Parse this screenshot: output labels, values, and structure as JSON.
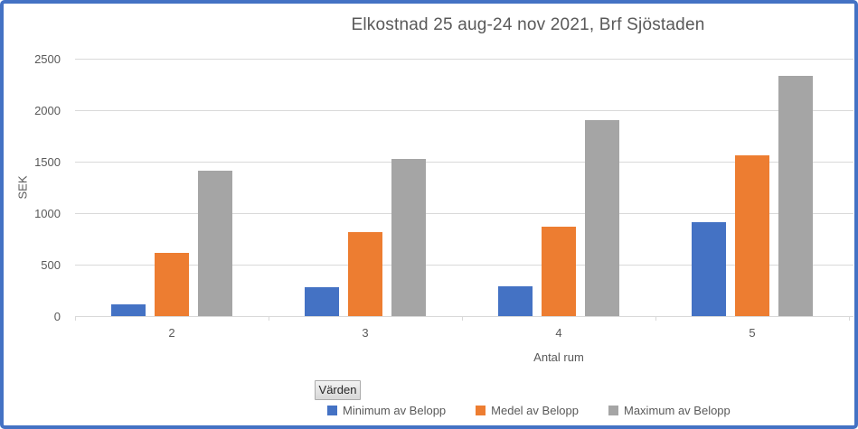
{
  "chart_border_color": "#4472C4",
  "chart_data": {
    "type": "bar",
    "title": "Elkostnad 25 aug-24 nov 2021, Brf Sjöstaden",
    "xlabel": "Antal rum",
    "ylabel": "SEK",
    "categories": [
      "2",
      "3",
      "4",
      "5"
    ],
    "series": [
      {
        "name": "Minimum av Belopp",
        "color": "#4472C4",
        "values": [
          115,
          285,
          290,
          910
        ]
      },
      {
        "name": "Medel av Belopp",
        "color": "#ED7D31",
        "values": [
          610,
          820,
          870,
          1560
        ]
      },
      {
        "name": "Maximum av Belopp",
        "color": "#A5A5A5",
        "values": [
          1410,
          1530,
          1905,
          2330
        ]
      }
    ],
    "ylim": [
      0,
      2500
    ],
    "yticks": [
      0,
      500,
      1000,
      1500,
      2000,
      2500
    ],
    "grid": true,
    "legend_position": "bottom",
    "gridline_color": "#D9D9D9",
    "text_color": "#595959"
  },
  "pivot_controls": {
    "field_button_label": "Värden"
  }
}
